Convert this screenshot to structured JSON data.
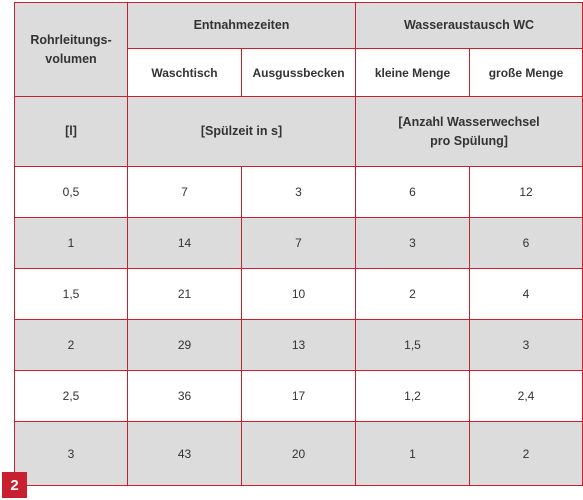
{
  "figure_number": "2",
  "header": {
    "col1": [
      "Rohrleitungs-",
      "volumen"
    ],
    "group1": "Entnahmezeiten",
    "group2": "Wasseraustausch WC",
    "sub": [
      "Waschtisch",
      "Ausgussbecken",
      "kleine Menge",
      "große Menge"
    ]
  },
  "units": {
    "col1": "[l]",
    "group1": "[Spülzeit in s]",
    "group2": [
      "[Anzahl Wasserwechsel",
      "pro Spülung]"
    ]
  },
  "rows": [
    [
      "0,5",
      "7",
      "3",
      "6",
      "12"
    ],
    [
      "1",
      "14",
      "7",
      "3",
      "6"
    ],
    [
      "1,5",
      "21",
      "10",
      "2",
      "4"
    ],
    [
      "2",
      "29",
      "13",
      "1,5",
      "3"
    ],
    [
      "2,5",
      "36",
      "17",
      "1,2",
      "2,4"
    ],
    [
      "3",
      "43",
      "20",
      "1",
      "2"
    ]
  ]
}
